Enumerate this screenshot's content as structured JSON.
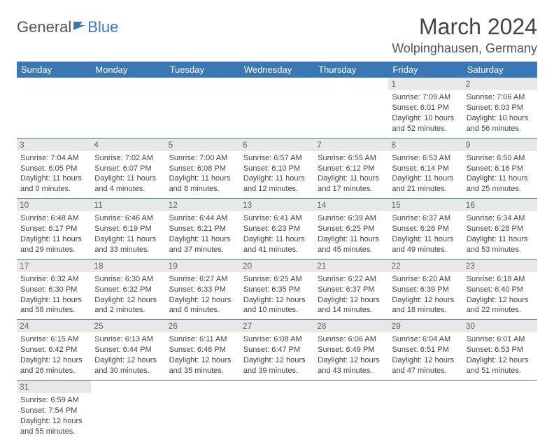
{
  "logo": {
    "text1": "General",
    "text2": "Blue"
  },
  "title": "March 2024",
  "location": "Wolpinghausen, Germany",
  "colors": {
    "header_bg": "#3a78b5",
    "header_text": "#ffffff",
    "daynum_bg": "#e8e8e8",
    "row_border": "#3a78b5",
    "logo_gray": "#555555",
    "logo_blue": "#3a78b5"
  },
  "weekdays": [
    "Sunday",
    "Monday",
    "Tuesday",
    "Wednesday",
    "Thursday",
    "Friday",
    "Saturday"
  ],
  "weeks": [
    [
      null,
      null,
      null,
      null,
      null,
      {
        "d": "1",
        "sr": "Sunrise: 7:09 AM",
        "ss": "Sunset: 6:01 PM",
        "dl": "Daylight: 10 hours and 52 minutes."
      },
      {
        "d": "2",
        "sr": "Sunrise: 7:06 AM",
        "ss": "Sunset: 6:03 PM",
        "dl": "Daylight: 10 hours and 56 minutes."
      }
    ],
    [
      {
        "d": "3",
        "sr": "Sunrise: 7:04 AM",
        "ss": "Sunset: 6:05 PM",
        "dl": "Daylight: 11 hours and 0 minutes."
      },
      {
        "d": "4",
        "sr": "Sunrise: 7:02 AM",
        "ss": "Sunset: 6:07 PM",
        "dl": "Daylight: 11 hours and 4 minutes."
      },
      {
        "d": "5",
        "sr": "Sunrise: 7:00 AM",
        "ss": "Sunset: 6:08 PM",
        "dl": "Daylight: 11 hours and 8 minutes."
      },
      {
        "d": "6",
        "sr": "Sunrise: 6:57 AM",
        "ss": "Sunset: 6:10 PM",
        "dl": "Daylight: 11 hours and 12 minutes."
      },
      {
        "d": "7",
        "sr": "Sunrise: 6:55 AM",
        "ss": "Sunset: 6:12 PM",
        "dl": "Daylight: 11 hours and 17 minutes."
      },
      {
        "d": "8",
        "sr": "Sunrise: 6:53 AM",
        "ss": "Sunset: 6:14 PM",
        "dl": "Daylight: 11 hours and 21 minutes."
      },
      {
        "d": "9",
        "sr": "Sunrise: 6:50 AM",
        "ss": "Sunset: 6:16 PM",
        "dl": "Daylight: 11 hours and 25 minutes."
      }
    ],
    [
      {
        "d": "10",
        "sr": "Sunrise: 6:48 AM",
        "ss": "Sunset: 6:17 PM",
        "dl": "Daylight: 11 hours and 29 minutes."
      },
      {
        "d": "11",
        "sr": "Sunrise: 6:46 AM",
        "ss": "Sunset: 6:19 PM",
        "dl": "Daylight: 11 hours and 33 minutes."
      },
      {
        "d": "12",
        "sr": "Sunrise: 6:44 AM",
        "ss": "Sunset: 6:21 PM",
        "dl": "Daylight: 11 hours and 37 minutes."
      },
      {
        "d": "13",
        "sr": "Sunrise: 6:41 AM",
        "ss": "Sunset: 6:23 PM",
        "dl": "Daylight: 11 hours and 41 minutes."
      },
      {
        "d": "14",
        "sr": "Sunrise: 6:39 AM",
        "ss": "Sunset: 6:25 PM",
        "dl": "Daylight: 11 hours and 45 minutes."
      },
      {
        "d": "15",
        "sr": "Sunrise: 6:37 AM",
        "ss": "Sunset: 6:26 PM",
        "dl": "Daylight: 11 hours and 49 minutes."
      },
      {
        "d": "16",
        "sr": "Sunrise: 6:34 AM",
        "ss": "Sunset: 6:28 PM",
        "dl": "Daylight: 11 hours and 53 minutes."
      }
    ],
    [
      {
        "d": "17",
        "sr": "Sunrise: 6:32 AM",
        "ss": "Sunset: 6:30 PM",
        "dl": "Daylight: 11 hours and 58 minutes."
      },
      {
        "d": "18",
        "sr": "Sunrise: 6:30 AM",
        "ss": "Sunset: 6:32 PM",
        "dl": "Daylight: 12 hours and 2 minutes."
      },
      {
        "d": "19",
        "sr": "Sunrise: 6:27 AM",
        "ss": "Sunset: 6:33 PM",
        "dl": "Daylight: 12 hours and 6 minutes."
      },
      {
        "d": "20",
        "sr": "Sunrise: 6:25 AM",
        "ss": "Sunset: 6:35 PM",
        "dl": "Daylight: 12 hours and 10 minutes."
      },
      {
        "d": "21",
        "sr": "Sunrise: 6:22 AM",
        "ss": "Sunset: 6:37 PM",
        "dl": "Daylight: 12 hours and 14 minutes."
      },
      {
        "d": "22",
        "sr": "Sunrise: 6:20 AM",
        "ss": "Sunset: 6:39 PM",
        "dl": "Daylight: 12 hours and 18 minutes."
      },
      {
        "d": "23",
        "sr": "Sunrise: 6:18 AM",
        "ss": "Sunset: 6:40 PM",
        "dl": "Daylight: 12 hours and 22 minutes."
      }
    ],
    [
      {
        "d": "24",
        "sr": "Sunrise: 6:15 AM",
        "ss": "Sunset: 6:42 PM",
        "dl": "Daylight: 12 hours and 26 minutes."
      },
      {
        "d": "25",
        "sr": "Sunrise: 6:13 AM",
        "ss": "Sunset: 6:44 PM",
        "dl": "Daylight: 12 hours and 30 minutes."
      },
      {
        "d": "26",
        "sr": "Sunrise: 6:11 AM",
        "ss": "Sunset: 6:46 PM",
        "dl": "Daylight: 12 hours and 35 minutes."
      },
      {
        "d": "27",
        "sr": "Sunrise: 6:08 AM",
        "ss": "Sunset: 6:47 PM",
        "dl": "Daylight: 12 hours and 39 minutes."
      },
      {
        "d": "28",
        "sr": "Sunrise: 6:06 AM",
        "ss": "Sunset: 6:49 PM",
        "dl": "Daylight: 12 hours and 43 minutes."
      },
      {
        "d": "29",
        "sr": "Sunrise: 6:04 AM",
        "ss": "Sunset: 6:51 PM",
        "dl": "Daylight: 12 hours and 47 minutes."
      },
      {
        "d": "30",
        "sr": "Sunrise: 6:01 AM",
        "ss": "Sunset: 6:53 PM",
        "dl": "Daylight: 12 hours and 51 minutes."
      }
    ],
    [
      {
        "d": "31",
        "sr": "Sunrise: 6:59 AM",
        "ss": "Sunset: 7:54 PM",
        "dl": "Daylight: 12 hours and 55 minutes."
      },
      null,
      null,
      null,
      null,
      null,
      null
    ]
  ]
}
